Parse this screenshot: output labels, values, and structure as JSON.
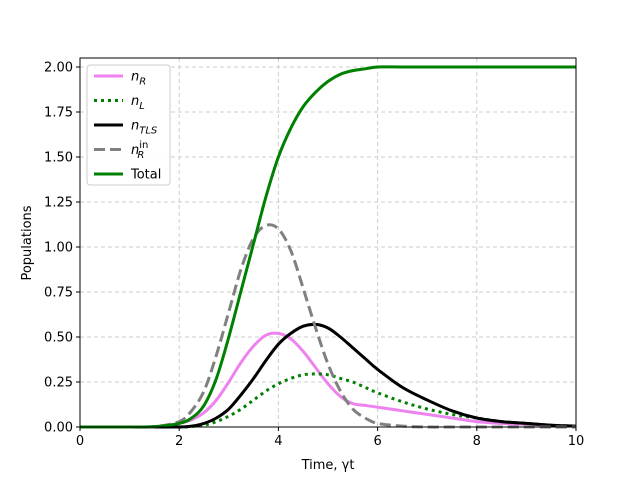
{
  "chart_data": {
    "type": "line",
    "xlabel": "Time, γt",
    "ylabel": "Populations",
    "xlim": [
      0,
      10
    ],
    "ylim": [
      0,
      2.05
    ],
    "x_ticks": [
      0,
      2,
      4,
      6,
      8,
      10
    ],
    "y_ticks": [
      0.0,
      0.25,
      0.5,
      0.75,
      1.0,
      1.25,
      1.5,
      1.75,
      2.0
    ],
    "x_tick_labels": [
      "0",
      "2",
      "4",
      "6",
      "8",
      "10"
    ],
    "y_tick_labels": [
      "0.00",
      "0.25",
      "0.50",
      "0.75",
      "1.00",
      "1.25",
      "1.50",
      "1.75",
      "2.00"
    ],
    "grid": true,
    "legend_position": "upper-left",
    "x": [
      0,
      0.5,
      1,
      1.5,
      2,
      2.25,
      2.5,
      2.75,
      3,
      3.25,
      3.5,
      3.75,
      4,
      4.25,
      4.5,
      4.75,
      5,
      5.25,
      5.5,
      5.75,
      6,
      6.5,
      7,
      7.5,
      8,
      8.5,
      9,
      9.5,
      10
    ],
    "series": [
      {
        "name": "n_R",
        "label_main": "n",
        "label_sub": "R",
        "label_sup": "",
        "color": "#ee82ee",
        "style": "solid",
        "values": [
          0,
          0,
          0,
          0,
          0.02,
          0.04,
          0.08,
          0.15,
          0.25,
          0.36,
          0.45,
          0.51,
          0.52,
          0.49,
          0.42,
          0.33,
          0.24,
          0.17,
          0.13,
          0.12,
          0.11,
          0.09,
          0.07,
          0.05,
          0.03,
          0.02,
          0.015,
          0.01,
          0.005
        ]
      },
      {
        "name": "n_L",
        "label_main": "n",
        "label_sub": "L",
        "label_sup": "",
        "color": "#008000",
        "style": "dotted",
        "values": [
          0,
          0,
          0,
          0,
          0,
          0.003,
          0.01,
          0.03,
          0.06,
          0.1,
          0.15,
          0.2,
          0.24,
          0.27,
          0.29,
          0.295,
          0.29,
          0.27,
          0.25,
          0.22,
          0.19,
          0.14,
          0.1,
          0.07,
          0.05,
          0.03,
          0.02,
          0.01,
          0.005
        ]
      },
      {
        "name": "n_TLS",
        "label_main": "n",
        "label_sub": "TLS",
        "label_sup": "",
        "color": "#000000",
        "style": "solid",
        "values": [
          0,
          0,
          0,
          0,
          0,
          0.005,
          0.02,
          0.05,
          0.1,
          0.18,
          0.27,
          0.37,
          0.46,
          0.52,
          0.56,
          0.57,
          0.55,
          0.5,
          0.44,
          0.38,
          0.32,
          0.22,
          0.15,
          0.09,
          0.05,
          0.03,
          0.02,
          0.01,
          0.005
        ]
      },
      {
        "name": "n_R^in",
        "label_main": "n",
        "label_sub": "R",
        "label_sup": "in",
        "color": "#808080",
        "style": "dashed",
        "values": [
          0,
          0,
          0,
          0.002,
          0.03,
          0.09,
          0.2,
          0.4,
          0.64,
          0.88,
          1.05,
          1.12,
          1.1,
          0.98,
          0.77,
          0.55,
          0.35,
          0.2,
          0.1,
          0.05,
          0.02,
          0.005,
          0,
          0,
          0,
          0,
          0,
          0,
          0
        ]
      },
      {
        "name": "Total",
        "label_main": "Total",
        "label_sub": "",
        "label_sup": "",
        "color": "#008000",
        "style": "solid",
        "values": [
          0,
          0,
          0,
          0.002,
          0.02,
          0.05,
          0.12,
          0.27,
          0.5,
          0.76,
          1.02,
          1.28,
          1.5,
          1.66,
          1.78,
          1.86,
          1.92,
          1.96,
          1.98,
          1.99,
          2.0,
          2.0,
          2.0,
          2.0,
          2.0,
          2.0,
          2.0,
          2.0,
          2.0
        ]
      }
    ]
  }
}
